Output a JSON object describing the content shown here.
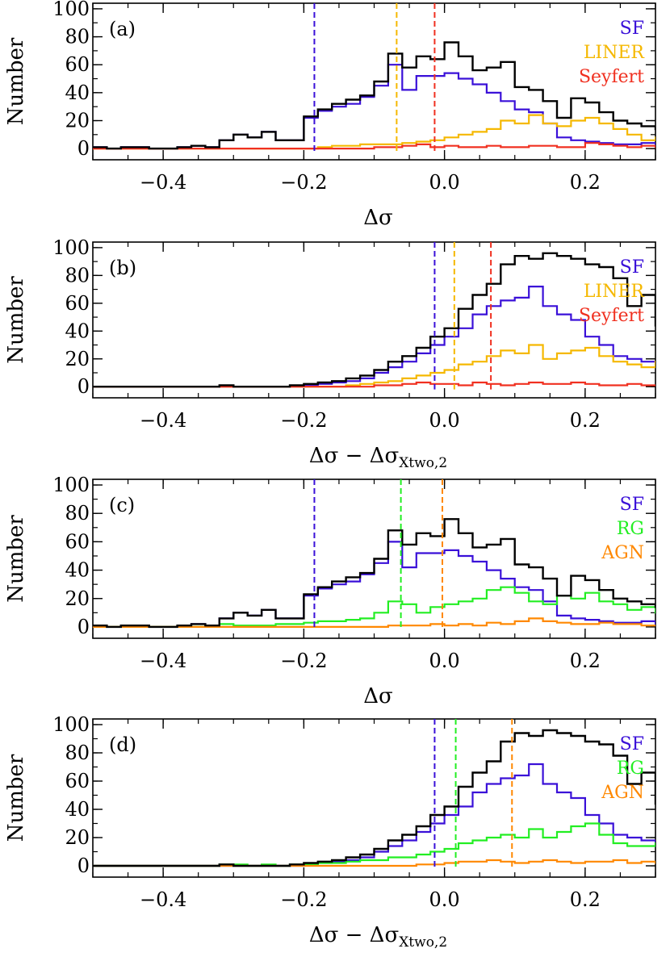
{
  "colors": {
    "axis": "#000000",
    "total": "#000000",
    "SF": "#3a10d8",
    "LINER": "#f5b800",
    "Seyfert": "#f03020",
    "RG": "#22ee22",
    "AGN": "#ff8800"
  },
  "chart_data": [
    {
      "type": "step-histogram",
      "panel_label": "(a)",
      "xlabel": "Δσ",
      "ylabel": "Number",
      "xlim": [
        -0.5,
        0.3
      ],
      "ylim": [
        -8,
        104
      ],
      "xticks": [
        "−0.4",
        "−0.2",
        "0.0",
        "0.2"
      ],
      "xtick_values": [
        -0.4,
        -0.2,
        0.0,
        0.2
      ],
      "yticks": [
        "0",
        "20",
        "40",
        "60",
        "80",
        "100"
      ],
      "ytick_values": [
        0,
        20,
        40,
        60,
        80,
        100
      ],
      "legend": [
        "SF",
        "LINER",
        "Seyfert"
      ],
      "bin_start": -0.5,
      "bin_width": 0.02,
      "series": [
        {
          "name": "total",
          "values": [
            1,
            0,
            1,
            1,
            0,
            0,
            1,
            2,
            1,
            6,
            10,
            8,
            12,
            6,
            6,
            23,
            28,
            32,
            35,
            38,
            48,
            68,
            58,
            66,
            64,
            76,
            66,
            56,
            58,
            62,
            44,
            42,
            34,
            22,
            36,
            33,
            26,
            20,
            18,
            16,
            14,
            12,
            10,
            8,
            6,
            6,
            4,
            4,
            2,
            0
          ]
        },
        {
          "name": "SF",
          "values": [
            1,
            0,
            1,
            1,
            0,
            0,
            1,
            2,
            1,
            6,
            10,
            8,
            12,
            6,
            6,
            22,
            27,
            30,
            32,
            37,
            45,
            60,
            42,
            52,
            52,
            54,
            50,
            46,
            40,
            34,
            28,
            26,
            18,
            8,
            6,
            5,
            4,
            3,
            3,
            4,
            1,
            2,
            4,
            1,
            2,
            1,
            1,
            0,
            0,
            0
          ]
        },
        {
          "name": "LINER",
          "values": [
            0,
            0,
            0,
            0,
            0,
            0,
            0,
            0,
            0,
            0,
            0,
            0,
            0,
            0,
            0,
            0,
            1,
            2,
            2,
            3,
            3,
            3,
            4,
            5,
            6,
            8,
            10,
            12,
            14,
            20,
            18,
            24,
            18,
            16,
            20,
            22,
            18,
            14,
            10,
            6,
            8,
            5,
            4,
            6,
            3,
            2,
            1,
            0,
            0,
            0
          ]
        },
        {
          "name": "Seyfert",
          "values": [
            0,
            0,
            0,
            0,
            0,
            0,
            0,
            0,
            0,
            0,
            0,
            0,
            0,
            0,
            0,
            0,
            0,
            0,
            0,
            0,
            1,
            1,
            2,
            3,
            1,
            2,
            1,
            1,
            2,
            1,
            1,
            2,
            2,
            1,
            1,
            4,
            3,
            2,
            1,
            2,
            1,
            1,
            0,
            1,
            0,
            0,
            0,
            0,
            0,
            0
          ]
        }
      ],
      "medians": [
        {
          "name": "SF",
          "value": -0.185
        },
        {
          "name": "LINER",
          "value": -0.068
        },
        {
          "name": "Seyfert",
          "value": -0.014
        }
      ]
    },
    {
      "type": "step-histogram",
      "panel_label": "(b)",
      "xlabel": "Δσ − Δσ",
      "xlabel_sub": "Xtwo,2",
      "ylabel": "Number",
      "xlim": [
        -0.5,
        0.3
      ],
      "ylim": [
        -8,
        104
      ],
      "xticks": [
        "−0.4",
        "−0.2",
        "0.0",
        "0.2"
      ],
      "xtick_values": [
        -0.4,
        -0.2,
        0.0,
        0.2
      ],
      "yticks": [
        "0",
        "20",
        "40",
        "60",
        "80",
        "100"
      ],
      "ytick_values": [
        0,
        20,
        40,
        60,
        80,
        100
      ],
      "legend": [
        "SF",
        "LINER",
        "Seyfert"
      ],
      "bin_start": -0.5,
      "bin_width": 0.02,
      "series": [
        {
          "name": "total",
          "values": [
            0,
            0,
            0,
            0,
            0,
            0,
            0,
            0,
            0,
            1,
            0,
            0,
            0,
            0,
            1,
            2,
            3,
            4,
            6,
            8,
            12,
            18,
            22,
            28,
            36,
            42,
            56,
            66,
            74,
            88,
            94,
            92,
            96,
            94,
            92,
            88,
            86,
            78,
            58,
            66,
            44,
            36,
            30,
            12,
            6,
            2,
            2,
            0,
            0,
            2
          ]
        },
        {
          "name": "SF",
          "values": [
            0,
            0,
            0,
            0,
            0,
            0,
            0,
            0,
            0,
            0,
            0,
            0,
            0,
            0,
            0,
            1,
            2,
            3,
            4,
            6,
            10,
            14,
            18,
            24,
            30,
            36,
            42,
            52,
            58,
            62,
            64,
            72,
            58,
            52,
            48,
            36,
            30,
            22,
            20,
            18,
            14,
            10,
            8,
            4,
            2,
            1,
            1,
            0,
            0,
            1
          ]
        },
        {
          "name": "LINER",
          "values": [
            0,
            0,
            0,
            0,
            0,
            0,
            0,
            0,
            0,
            0,
            0,
            0,
            0,
            0,
            0,
            0,
            0,
            0,
            1,
            2,
            3,
            4,
            6,
            8,
            10,
            12,
            16,
            18,
            22,
            26,
            24,
            30,
            20,
            24,
            26,
            28,
            22,
            18,
            16,
            14,
            18,
            12,
            8,
            4,
            2,
            1,
            1,
            0,
            0,
            0
          ]
        },
        {
          "name": "Seyfert",
          "values": [
            0,
            0,
            0,
            0,
            0,
            0,
            0,
            0,
            0,
            0,
            0,
            0,
            0,
            0,
            0,
            0,
            0,
            0,
            0,
            0,
            1,
            1,
            2,
            3,
            2,
            2,
            1,
            3,
            2,
            1,
            2,
            3,
            2,
            2,
            3,
            2,
            1,
            1,
            2,
            1,
            1,
            1,
            0,
            1,
            0,
            0,
            0,
            0,
            0,
            0
          ]
        }
      ],
      "medians": [
        {
          "name": "SF",
          "value": -0.014
        },
        {
          "name": "LINER",
          "value": 0.014
        },
        {
          "name": "Seyfert",
          "value": 0.066
        }
      ]
    },
    {
      "type": "step-histogram",
      "panel_label": "(c)",
      "xlabel": "Δσ",
      "ylabel": "Number",
      "xlim": [
        -0.5,
        0.3
      ],
      "ylim": [
        -8,
        104
      ],
      "xticks": [
        "−0.4",
        "−0.2",
        "0.0",
        "0.2"
      ],
      "xtick_values": [
        -0.4,
        -0.2,
        0.0,
        0.2
      ],
      "yticks": [
        "0",
        "20",
        "40",
        "60",
        "80",
        "100"
      ],
      "ytick_values": [
        0,
        20,
        40,
        60,
        80,
        100
      ],
      "legend": [
        "SF",
        "RG",
        "AGN"
      ],
      "bin_start": -0.5,
      "bin_width": 0.02,
      "series": [
        {
          "name": "total",
          "values": [
            1,
            0,
            1,
            1,
            0,
            0,
            1,
            2,
            1,
            6,
            10,
            8,
            12,
            6,
            6,
            23,
            28,
            32,
            35,
            38,
            48,
            68,
            58,
            66,
            64,
            76,
            66,
            56,
            58,
            62,
            44,
            42,
            34,
            22,
            36,
            33,
            26,
            20,
            18,
            16,
            14,
            12,
            10,
            8,
            6,
            6,
            4,
            4,
            2,
            0
          ]
        },
        {
          "name": "SF",
          "values": [
            1,
            0,
            1,
            1,
            0,
            0,
            1,
            2,
            1,
            6,
            10,
            8,
            12,
            6,
            6,
            22,
            27,
            30,
            32,
            37,
            45,
            60,
            42,
            52,
            52,
            54,
            50,
            46,
            40,
            34,
            28,
            26,
            18,
            8,
            6,
            5,
            4,
            3,
            3,
            4,
            1,
            2,
            4,
            1,
            2,
            1,
            1,
            0,
            0,
            0
          ]
        },
        {
          "name": "RG",
          "values": [
            0,
            0,
            0,
            0,
            0,
            0,
            0,
            0,
            0,
            2,
            1,
            1,
            1,
            2,
            2,
            3,
            4,
            4,
            5,
            6,
            10,
            18,
            16,
            10,
            14,
            16,
            18,
            20,
            26,
            28,
            24,
            18,
            16,
            22,
            20,
            24,
            18,
            16,
            12,
            14,
            10,
            8,
            6,
            4,
            3,
            2,
            1,
            0,
            0,
            0
          ]
        },
        {
          "name": "AGN",
          "values": [
            0,
            0,
            0,
            0,
            0,
            0,
            0,
            0,
            0,
            0,
            0,
            0,
            0,
            0,
            0,
            0,
            0,
            0,
            0,
            0,
            0,
            1,
            1,
            1,
            2,
            1,
            2,
            1,
            3,
            2,
            4,
            6,
            4,
            3,
            2,
            2,
            3,
            2,
            2,
            1,
            1,
            2,
            1,
            1,
            0,
            0,
            0,
            0,
            0,
            0
          ]
        }
      ],
      "medians": [
        {
          "name": "SF",
          "value": -0.185
        },
        {
          "name": "RG",
          "value": -0.062
        },
        {
          "name": "AGN",
          "value": -0.003
        }
      ]
    },
    {
      "type": "step-histogram",
      "panel_label": "(d)",
      "xlabel": "Δσ − Δσ",
      "xlabel_sub": "Xtwo,2",
      "ylabel": "Number",
      "xlim": [
        -0.5,
        0.3
      ],
      "ylim": [
        -8,
        104
      ],
      "xticks": [
        "−0.4",
        "−0.2",
        "0.0",
        "0.2"
      ],
      "xtick_values": [
        -0.4,
        -0.2,
        0.0,
        0.2
      ],
      "yticks": [
        "0",
        "20",
        "40",
        "60",
        "80",
        "100"
      ],
      "ytick_values": [
        0,
        20,
        40,
        60,
        80,
        100
      ],
      "legend": [
        "SF",
        "RG",
        "AGN"
      ],
      "bin_start": -0.5,
      "bin_width": 0.02,
      "series": [
        {
          "name": "total",
          "values": [
            0,
            0,
            0,
            0,
            0,
            0,
            0,
            0,
            0,
            1,
            0,
            0,
            0,
            0,
            1,
            2,
            3,
            4,
            6,
            8,
            12,
            18,
            22,
            28,
            36,
            42,
            56,
            66,
            74,
            88,
            94,
            92,
            96,
            94,
            92,
            88,
            86,
            78,
            58,
            66,
            44,
            36,
            30,
            12,
            6,
            2,
            2,
            0,
            0,
            2
          ]
        },
        {
          "name": "SF",
          "values": [
            0,
            0,
            0,
            0,
            0,
            0,
            0,
            0,
            0,
            0,
            0,
            0,
            0,
            0,
            0,
            1,
            2,
            3,
            4,
            6,
            10,
            14,
            18,
            24,
            30,
            36,
            42,
            52,
            58,
            62,
            64,
            72,
            58,
            52,
            48,
            36,
            30,
            22,
            20,
            18,
            14,
            10,
            8,
            4,
            2,
            1,
            1,
            0,
            0,
            1
          ]
        },
        {
          "name": "RG",
          "values": [
            0,
            0,
            0,
            0,
            0,
            0,
            0,
            0,
            0,
            1,
            1,
            0,
            1,
            0,
            1,
            1,
            2,
            2,
            3,
            4,
            4,
            6,
            6,
            8,
            10,
            12,
            16,
            18,
            20,
            22,
            20,
            26,
            20,
            24,
            28,
            30,
            22,
            16,
            14,
            14,
            16,
            12,
            8,
            5,
            3,
            2,
            1,
            0,
            0,
            0
          ]
        },
        {
          "name": "AGN",
          "values": [
            0,
            0,
            0,
            0,
            0,
            0,
            0,
            0,
            0,
            0,
            0,
            0,
            0,
            0,
            0,
            0,
            0,
            0,
            0,
            0,
            0,
            0,
            0,
            1,
            1,
            2,
            3,
            3,
            4,
            3,
            2,
            3,
            4,
            3,
            2,
            3,
            3,
            4,
            2,
            3,
            2,
            2,
            1,
            1,
            0,
            0,
            0,
            0,
            0,
            0
          ]
        }
      ],
      "medians": [
        {
          "name": "SF",
          "value": -0.014
        },
        {
          "name": "RG",
          "value": 0.016
        },
        {
          "name": "AGN",
          "value": 0.096
        }
      ]
    }
  ]
}
